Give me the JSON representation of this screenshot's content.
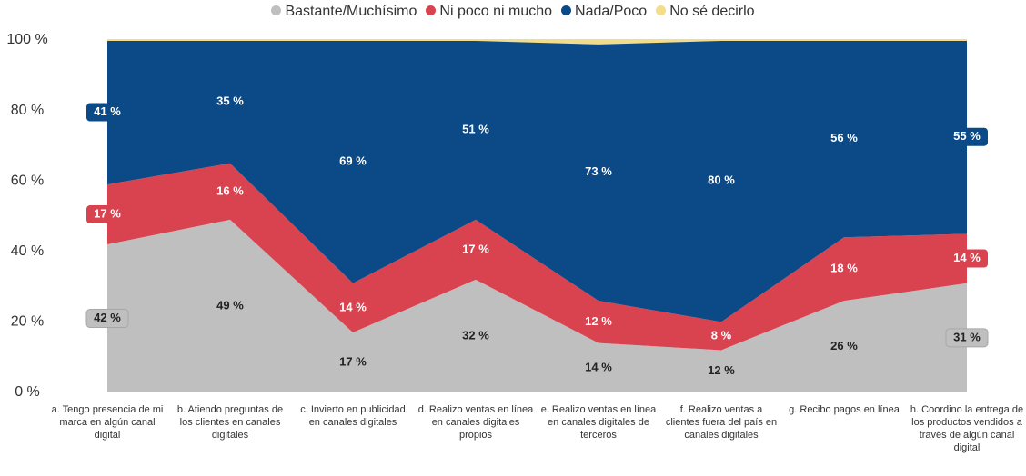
{
  "chart_data": {
    "type": "stacked-area",
    "categories": [
      "a. Tengo presencia de mi marca en algún canal digital",
      "b. Atiendo preguntas de los clientes en canales digitales",
      "c. Invierto en publicidad en canales digitales",
      "d. Realizo ventas en línea en canales digitales propios",
      "e. Realizo ventas en línea en canales digitales de terceros",
      "f. Realizo ventas a clientes fuera del país en canales digitales",
      "g. Recibo pagos en línea",
      "h. Coordino la entrega de los productos vendidos a través de algún canal digital"
    ],
    "series": [
      {
        "name": "Bastante/Muchísimo",
        "color": "#bfbfbf",
        "values": [
          42,
          49,
          17,
          32,
          14,
          12,
          26,
          31
        ],
        "value_labels": [
          "42 %",
          "49 %",
          "17 %",
          "32 %",
          "14 %",
          "12 %",
          "26 %",
          "31 %"
        ]
      },
      {
        "name": "Ni poco ni mucho",
        "color": "#d9434f",
        "values": [
          17,
          16,
          14,
          17,
          12,
          8,
          18,
          14
        ],
        "value_labels": [
          "17 %",
          "16 %",
          "14 %",
          "17 %",
          "12 %",
          "8 %",
          "18 %",
          "14 %"
        ]
      },
      {
        "name": "Nada/Poco",
        "color": "#0b4a86",
        "values": [
          41,
          35,
          69,
          51,
          73,
          80,
          56,
          55
        ],
        "value_labels": [
          "41 %",
          "35 %",
          "69 %",
          "51 %",
          "73 %",
          "80 %",
          "56 %",
          "55 %"
        ]
      },
      {
        "name": "No sé decirlo",
        "color": "#f3dc8a",
        "values": [
          0,
          0,
          0,
          0,
          1,
          0,
          0,
          0
        ]
      }
    ],
    "ylim": [
      0,
      100
    ],
    "yticks": [
      {
        "value": 0,
        "label": "0 %"
      },
      {
        "value": 20,
        "label": "20 %"
      },
      {
        "value": 40,
        "label": "40 %"
      },
      {
        "value": 60,
        "label": "60 %"
      },
      {
        "value": 80,
        "label": "80 %"
      },
      {
        "value": 100,
        "label": "100 %"
      }
    ],
    "legend": "top"
  }
}
